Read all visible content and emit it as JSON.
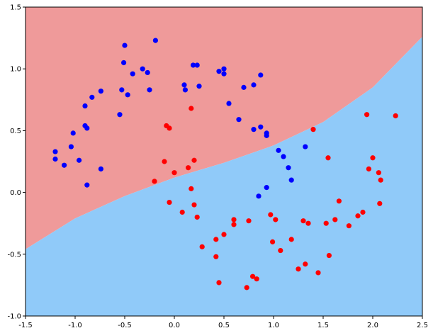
{
  "chart_data": {
    "type": "scatter",
    "title": "",
    "xlabel": "",
    "ylabel": "",
    "xlim": [
      -1.5,
      2.5
    ],
    "ylim": [
      -1.0,
      1.5
    ],
    "grid": false,
    "x_ticks": [
      "-1.5",
      "-1.0",
      "-0.5",
      "0.0",
      "0.5",
      "1.0",
      "1.5",
      "2.0",
      "2.5"
    ],
    "y_ticks": [
      "-1.0",
      "-0.5",
      "0.0",
      "0.5",
      "1.0",
      "1.5"
    ],
    "regions": {
      "top_color": "#ef9a9a",
      "bottom_color": "#90caf9",
      "boundary": [
        [
          -1.5,
          -0.46
        ],
        [
          -1.0,
          -0.21
        ],
        [
          -0.5,
          -0.03
        ],
        [
          0.0,
          0.12
        ],
        [
          0.5,
          0.24
        ],
        [
          1.0,
          0.38
        ],
        [
          1.5,
          0.57
        ],
        [
          2.0,
          0.85
        ],
        [
          2.5,
          1.26
        ]
      ]
    },
    "series": [
      {
        "color": "#0000ff",
        "points": [
          [
            -1.2,
            0.33
          ],
          [
            -1.2,
            0.27
          ],
          [
            -1.11,
            0.22
          ],
          [
            -1.04,
            0.37
          ],
          [
            -1.02,
            0.48
          ],
          [
            -0.96,
            0.26
          ],
          [
            -0.9,
            0.54
          ],
          [
            -0.9,
            0.7
          ],
          [
            -0.88,
            0.52
          ],
          [
            -0.88,
            0.06
          ],
          [
            -0.83,
            0.77
          ],
          [
            -0.74,
            0.82
          ],
          [
            -0.74,
            0.19
          ],
          [
            -0.55,
            0.63
          ],
          [
            -0.53,
            0.83
          ],
          [
            -0.51,
            1.05
          ],
          [
            -0.5,
            1.19
          ],
          [
            -0.47,
            0.79
          ],
          [
            -0.42,
            0.96
          ],
          [
            -0.32,
            1.0
          ],
          [
            -0.27,
            0.97
          ],
          [
            -0.25,
            0.83
          ],
          [
            -0.19,
            1.23
          ],
          [
            0.1,
            0.87
          ],
          [
            0.11,
            0.83
          ],
          [
            0.19,
            1.03
          ],
          [
            0.23,
            1.03
          ],
          [
            0.25,
            0.86
          ],
          [
            0.45,
            0.98
          ],
          [
            0.5,
            0.96
          ],
          [
            0.5,
            1.0
          ],
          [
            0.55,
            0.72
          ],
          [
            0.65,
            0.59
          ],
          [
            0.7,
            0.85
          ],
          [
            0.8,
            0.87
          ],
          [
            0.8,
            0.51
          ],
          [
            0.85,
            -0.03
          ],
          [
            0.87,
            0.53
          ],
          [
            0.87,
            0.95
          ],
          [
            0.93,
            0.48
          ],
          [
            0.93,
            0.46
          ],
          [
            0.93,
            0.04
          ],
          [
            1.05,
            0.34
          ],
          [
            1.1,
            0.29
          ],
          [
            1.15,
            0.2
          ],
          [
            1.18,
            0.1
          ],
          [
            1.32,
            0.37
          ]
        ]
      },
      {
        "color": "#ff0000",
        "points": [
          [
            -0.2,
            0.09
          ],
          [
            -0.1,
            0.25
          ],
          [
            -0.08,
            0.54
          ],
          [
            -0.05,
            0.52
          ],
          [
            -0.05,
            -0.08
          ],
          [
            0.0,
            0.16
          ],
          [
            0.08,
            -0.16
          ],
          [
            0.14,
            0.2
          ],
          [
            0.17,
            0.68
          ],
          [
            0.17,
            0.03
          ],
          [
            0.2,
            0.26
          ],
          [
            0.2,
            -0.1
          ],
          [
            0.23,
            -0.2
          ],
          [
            0.28,
            -0.44
          ],
          [
            0.42,
            -0.52
          ],
          [
            0.42,
            -0.38
          ],
          [
            0.45,
            -0.73
          ],
          [
            0.5,
            -0.34
          ],
          [
            0.6,
            -0.26
          ],
          [
            0.6,
            -0.22
          ],
          [
            0.73,
            -0.77
          ],
          [
            0.75,
            -0.23
          ],
          [
            0.79,
            -0.68
          ],
          [
            0.83,
            -0.7
          ],
          [
            0.97,
            -0.18
          ],
          [
            0.99,
            -0.4
          ],
          [
            1.02,
            -0.22
          ],
          [
            1.07,
            -0.47
          ],
          [
            1.18,
            -0.38
          ],
          [
            1.25,
            -0.62
          ],
          [
            1.3,
            -0.23
          ],
          [
            1.32,
            -0.58
          ],
          [
            1.35,
            -0.25
          ],
          [
            1.4,
            0.51
          ],
          [
            1.45,
            -0.65
          ],
          [
            1.53,
            -0.25
          ],
          [
            1.55,
            0.28
          ],
          [
            1.56,
            -0.51
          ],
          [
            1.62,
            -0.22
          ],
          [
            1.66,
            -0.07
          ],
          [
            1.76,
            -0.27
          ],
          [
            1.85,
            -0.19
          ],
          [
            1.9,
            -0.16
          ],
          [
            1.94,
            0.63
          ],
          [
            1.96,
            0.19
          ],
          [
            2.0,
            0.28
          ],
          [
            2.06,
            0.16
          ],
          [
            2.07,
            -0.09
          ],
          [
            2.08,
            0.1
          ],
          [
            2.23,
            0.62
          ]
        ]
      }
    ]
  }
}
